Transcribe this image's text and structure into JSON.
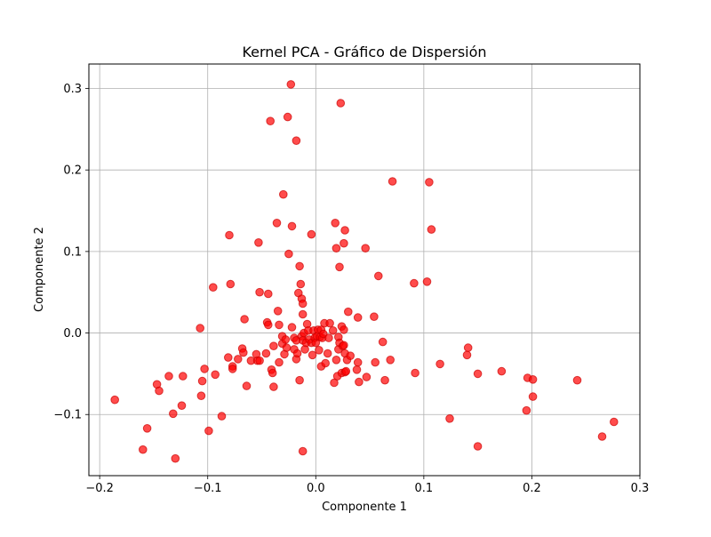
{
  "chart_data": {
    "type": "scatter",
    "title": "Kernel PCA - Gráfico de Dispersión",
    "xlabel": "Componente 1",
    "ylabel": "Componente 2",
    "xlim": [
      -0.21,
      0.3
    ],
    "ylim": [
      -0.175,
      0.33
    ],
    "xticks": [
      -0.2,
      -0.1,
      0.0,
      0.1,
      0.2,
      0.3
    ],
    "xtick_labels": [
      "−0.2",
      "−0.1",
      "0.0",
      "0.1",
      "0.2",
      "0.3"
    ],
    "yticks": [
      -0.1,
      0.0,
      0.1,
      0.2,
      0.3
    ],
    "ytick_labels": [
      "−0.1",
      "0.0",
      "0.1",
      "0.2",
      "0.3"
    ],
    "grid": true,
    "marker_color": "#ff0000",
    "marker_edge_color": "#cc0000",
    "marker_alpha": 0.7,
    "points": [
      [
        -0.186,
        -0.082
      ],
      [
        -0.16,
        -0.143
      ],
      [
        -0.156,
        -0.117
      ],
      [
        -0.147,
        -0.063
      ],
      [
        -0.145,
        -0.071
      ],
      [
        -0.136,
        -0.053
      ],
      [
        -0.132,
        -0.099
      ],
      [
        -0.13,
        -0.154
      ],
      [
        -0.124,
        -0.089
      ],
      [
        -0.123,
        -0.053
      ],
      [
        -0.107,
        0.006
      ],
      [
        -0.106,
        -0.077
      ],
      [
        -0.105,
        -0.059
      ],
      [
        -0.103,
        -0.044
      ],
      [
        -0.099,
        -0.12
      ],
      [
        -0.095,
        0.056
      ],
      [
        -0.093,
        -0.051
      ],
      [
        -0.087,
        -0.102
      ],
      [
        -0.081,
        -0.03
      ],
      [
        -0.08,
        0.12
      ],
      [
        -0.079,
        0.06
      ],
      [
        -0.077,
        -0.041
      ],
      [
        -0.077,
        -0.044
      ],
      [
        -0.072,
        -0.032
      ],
      [
        -0.068,
        -0.019
      ],
      [
        -0.067,
        -0.024
      ],
      [
        -0.066,
        0.017
      ],
      [
        -0.064,
        -0.065
      ],
      [
        -0.06,
        -0.034
      ],
      [
        -0.055,
        -0.026
      ],
      [
        -0.054,
        -0.034
      ],
      [
        -0.053,
        0.111
      ],
      [
        -0.052,
        0.05
      ],
      [
        -0.052,
        -0.034
      ],
      [
        -0.046,
        -0.025
      ],
      [
        -0.045,
        0.013
      ],
      [
        -0.044,
        0.01
      ],
      [
        -0.044,
        0.048
      ],
      [
        -0.042,
        0.26
      ],
      [
        -0.041,
        -0.045
      ],
      [
        -0.04,
        -0.049
      ],
      [
        -0.039,
        -0.066
      ],
      [
        -0.039,
        -0.016
      ],
      [
        -0.036,
        0.135
      ],
      [
        -0.035,
        0.027
      ],
      [
        -0.034,
        0.01
      ],
      [
        -0.034,
        -0.036
      ],
      [
        -0.031,
        -0.004
      ],
      [
        -0.031,
        -0.013
      ],
      [
        -0.03,
        0.17
      ],
      [
        -0.029,
        -0.026
      ],
      [
        -0.028,
        -0.008
      ],
      [
        -0.027,
        -0.018
      ],
      [
        -0.026,
        0.265
      ],
      [
        -0.025,
        0.097
      ],
      [
        -0.023,
        0.305
      ],
      [
        -0.022,
        0.007
      ],
      [
        -0.022,
        0.131
      ],
      [
        -0.02,
        -0.006
      ],
      [
        -0.02,
        -0.02
      ],
      [
        -0.018,
        -0.032
      ],
      [
        -0.018,
        0.236
      ],
      [
        -0.018,
        -0.009
      ],
      [
        -0.017,
        -0.025
      ],
      [
        -0.016,
        0.049
      ],
      [
        -0.015,
        0.082
      ],
      [
        -0.015,
        -0.058
      ],
      [
        -0.014,
        0.06
      ],
      [
        -0.013,
        -0.004
      ],
      [
        -0.013,
        0.042
      ],
      [
        -0.012,
        0.036
      ],
      [
        -0.012,
        0.023
      ],
      [
        -0.012,
        -0.145
      ],
      [
        -0.012,
        -0.009
      ],
      [
        -0.011,
        0.0
      ],
      [
        -0.01,
        -0.02
      ],
      [
        -0.009,
        -0.012
      ],
      [
        -0.008,
        0.011
      ],
      [
        -0.007,
        0.003
      ],
      [
        -0.006,
        -0.008
      ],
      [
        -0.004,
        0.121
      ],
      [
        -0.004,
        -0.012
      ],
      [
        -0.003,
        -0.027
      ],
      [
        -0.002,
        0.003
      ],
      [
        -0.001,
        -0.006
      ],
      [
        0.0,
        -0.012
      ],
      [
        0.001,
        -0.004
      ],
      [
        0.002,
        0.004
      ],
      [
        0.003,
        -0.021
      ],
      [
        0.004,
        -0.005
      ],
      [
        0.005,
        0.004
      ],
      [
        0.005,
        -0.041
      ],
      [
        0.006,
        -0.006
      ],
      [
        0.007,
        -0.001
      ],
      [
        0.008,
        0.012
      ],
      [
        0.009,
        -0.037
      ],
      [
        0.011,
        -0.025
      ],
      [
        0.012,
        -0.006
      ],
      [
        0.013,
        0.012
      ],
      [
        0.016,
        0.003
      ],
      [
        0.017,
        -0.061
      ],
      [
        0.018,
        0.135
      ],
      [
        0.019,
        0.104
      ],
      [
        0.019,
        -0.033
      ],
      [
        0.02,
        -0.053
      ],
      [
        0.021,
        -0.005
      ],
      [
        0.021,
        -0.02
      ],
      [
        0.022,
        0.081
      ],
      [
        0.022,
        -0.012
      ],
      [
        0.023,
        0.282
      ],
      [
        0.024,
        0.008
      ],
      [
        0.024,
        -0.049
      ],
      [
        0.025,
        -0.016
      ],
      [
        0.026,
        0.11
      ],
      [
        0.026,
        -0.015
      ],
      [
        0.026,
        0.004
      ],
      [
        0.027,
        -0.025
      ],
      [
        0.027,
        0.126
      ],
      [
        0.027,
        -0.048
      ],
      [
        0.028,
        -0.047
      ],
      [
        0.029,
        -0.033
      ],
      [
        0.03,
        0.026
      ],
      [
        0.032,
        -0.028
      ],
      [
        0.038,
        -0.045
      ],
      [
        0.039,
        -0.036
      ],
      [
        0.039,
        0.019
      ],
      [
        0.04,
        -0.06
      ],
      [
        0.046,
        0.104
      ],
      [
        0.047,
        -0.054
      ],
      [
        0.054,
        0.02
      ],
      [
        0.055,
        -0.036
      ],
      [
        0.058,
        0.07
      ],
      [
        0.062,
        -0.011
      ],
      [
        0.064,
        -0.058
      ],
      [
        0.069,
        -0.033
      ],
      [
        0.071,
        0.186
      ],
      [
        0.091,
        0.061
      ],
      [
        0.092,
        -0.049
      ],
      [
        0.103,
        0.063
      ],
      [
        0.105,
        0.185
      ],
      [
        0.107,
        0.127
      ],
      [
        0.115,
        -0.038
      ],
      [
        0.124,
        -0.105
      ],
      [
        0.14,
        -0.027
      ],
      [
        0.141,
        -0.018
      ],
      [
        0.15,
        -0.139
      ],
      [
        0.15,
        -0.05
      ],
      [
        0.172,
        -0.047
      ],
      [
        0.195,
        -0.095
      ],
      [
        0.196,
        -0.055
      ],
      [
        0.201,
        -0.057
      ],
      [
        0.201,
        -0.078
      ],
      [
        0.242,
        -0.058
      ],
      [
        0.265,
        -0.127
      ],
      [
        0.276,
        -0.109
      ]
    ]
  }
}
